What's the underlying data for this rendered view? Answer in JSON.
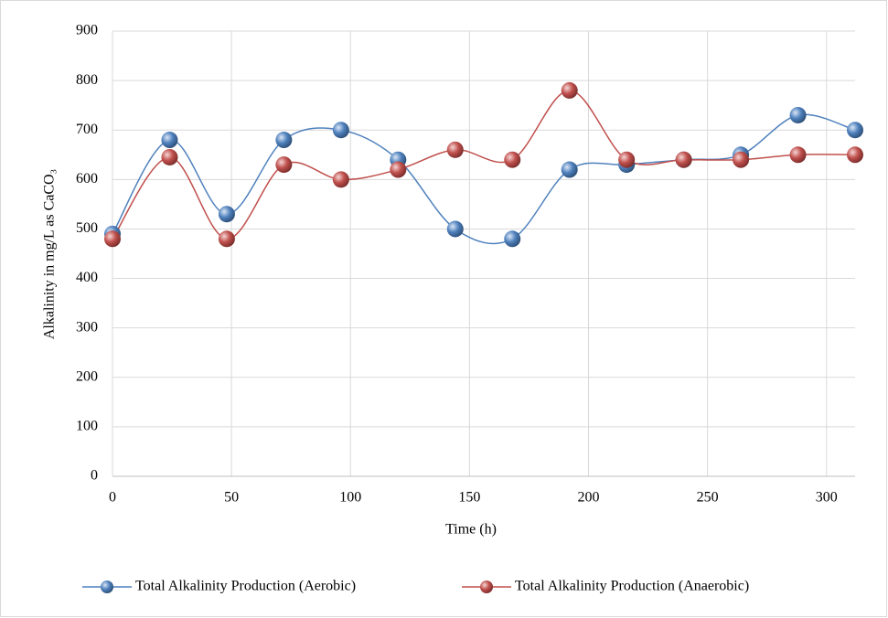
{
  "chart_data": {
    "type": "line",
    "x_label": "Time (h)",
    "y_label": "Alkalinity in mg/L as CaCO₃",
    "x": [
      0,
      24,
      48,
      72,
      96,
      120,
      144,
      168,
      192,
      216,
      240,
      264,
      288,
      312
    ],
    "series": [
      {
        "name": "Total Alkalinity Production (Aerobic)",
        "color": "#4f81bd",
        "values": [
          490,
          680,
          530,
          680,
          700,
          640,
          500,
          480,
          620,
          630,
          640,
          650,
          730,
          700
        ]
      },
      {
        "name": "Total Alkalinity Production (Anaerobic)",
        "color": "#c0504d",
        "values": [
          480,
          645,
          480,
          630,
          600,
          620,
          660,
          640,
          780,
          640,
          640,
          640,
          650,
          650
        ]
      }
    ],
    "xlim": [
      0,
      312
    ],
    "xticks": [
      0,
      50,
      100,
      150,
      200,
      250,
      300
    ],
    "ylim": [
      0,
      900
    ],
    "yticks": [
      0,
      100,
      200,
      300,
      400,
      500,
      600,
      700,
      800,
      900
    ],
    "grid": true,
    "smooth": true,
    "legend": "bottom"
  }
}
